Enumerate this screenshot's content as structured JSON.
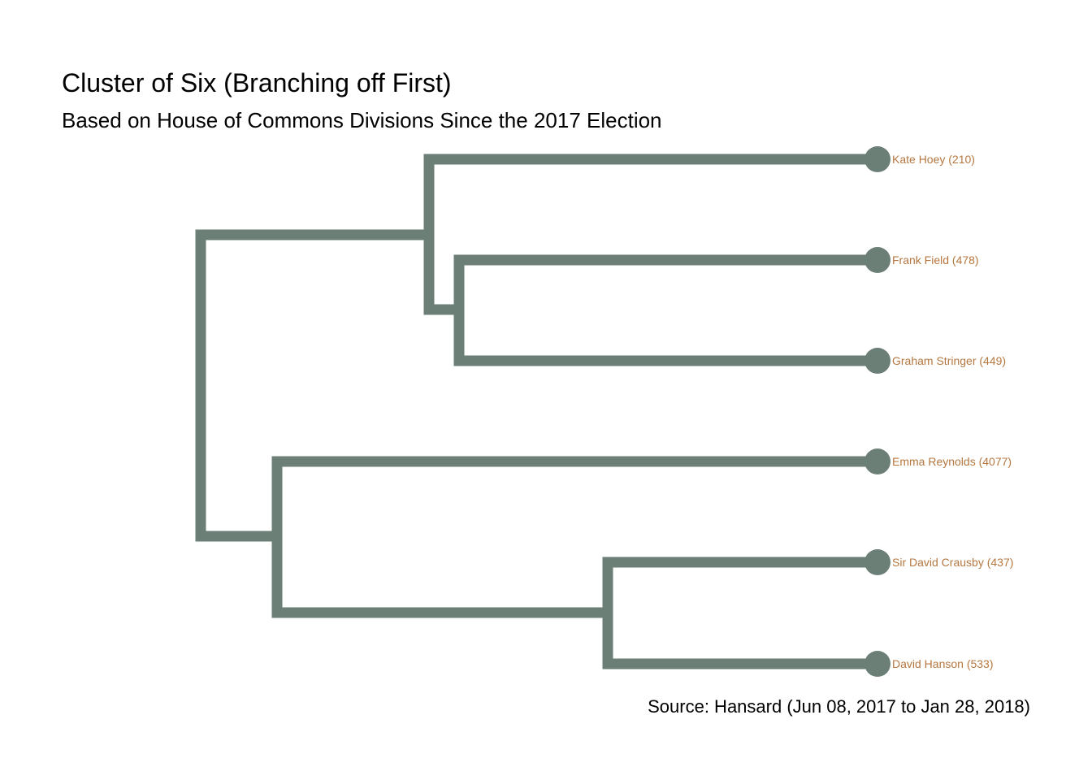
{
  "title": "Cluster of Six (Branching off First)",
  "subtitle": "Based on House of Commons Divisions Since the 2017 Election",
  "source": "Source: Hansard (Jun 08, 2017 to Jan 28, 2018)",
  "colors": {
    "branch": "#6b7f76",
    "label": "#b5773f"
  },
  "leaves": [
    {
      "label": "Kate Hoey (210)"
    },
    {
      "label": "Frank Field (478)"
    },
    {
      "label": "Graham Stringer (449)"
    },
    {
      "label": "Emma Reynolds (4077)"
    },
    {
      "label": "Sir David Crausby (437)"
    },
    {
      "label": "David Hanson (533)"
    }
  ]
}
